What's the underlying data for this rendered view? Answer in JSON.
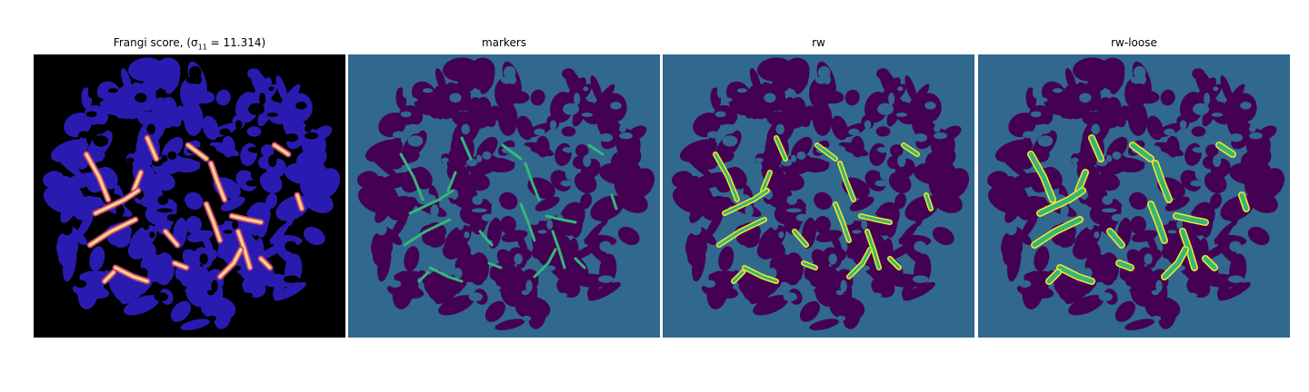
{
  "panels": [
    {
      "title": "Frangi score, (σ",
      "title_sub": "11",
      "title_rest": " = 11.314)",
      "colormap": "magma"
    },
    {
      "title": "markers",
      "colormap": "viridis"
    },
    {
      "title": "rw",
      "colormap": "viridis"
    },
    {
      "title": "rw-loose",
      "colormap": "viridis"
    }
  ],
  "colors": {
    "frangi_background": "#000000",
    "frangi_blob": "#2a1bb0",
    "frangi_vessel": "#f7a35a",
    "frangi_vessel_core": "#fde9a8",
    "segment_background": "#31688e",
    "segment_blob": "#440154",
    "marker_vessel": "#35b779",
    "rw_outline": "#fde725"
  }
}
